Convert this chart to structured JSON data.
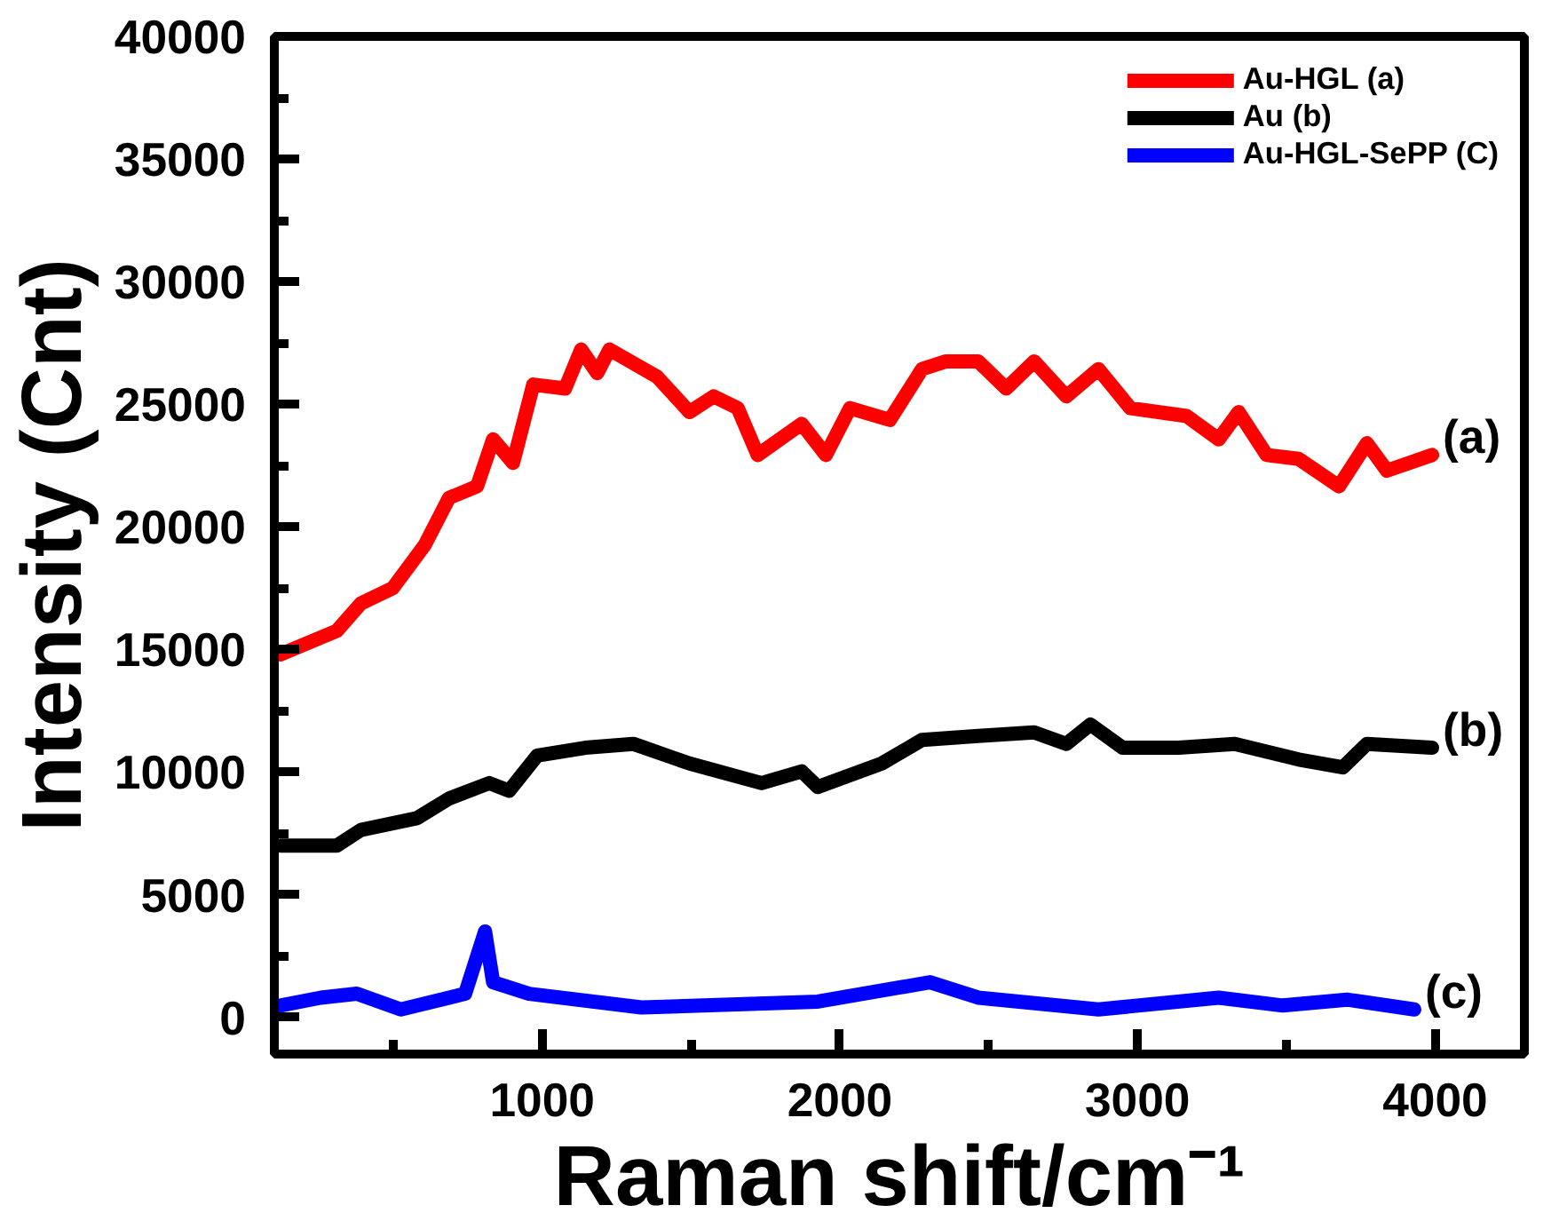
{
  "chart_data": {
    "type": "line",
    "xlabel": "Raman shift/cm⁻¹",
    "ylabel": "Intensity (Cnt)",
    "xlim": [
      100,
      4300
    ],
    "ylim": [
      -1500,
      40000
    ],
    "xticks": [
      1000,
      2000,
      3000,
      4000
    ],
    "yticks": [
      0,
      5000,
      10000,
      15000,
      20000,
      25000,
      30000,
      35000,
      40000
    ],
    "grid": false,
    "legend": "top right",
    "line_style": "solid",
    "marker": "none",
    "series": [
      {
        "name": "Au-HGL (a)",
        "color": "#ff0000",
        "x": [
          121,
          310,
          391,
          498,
          606,
          687,
          781,
          835,
          902,
          970,
          1077,
          1131,
          1185,
          1226,
          1387,
          1495,
          1576,
          1657,
          1724,
          1872,
          1953,
          2034,
          2168,
          2276,
          2357,
          2465,
          2559,
          2653,
          2761,
          2869,
          2976,
          3165,
          3273,
          3340,
          3434,
          3542,
          3677,
          3771,
          3838,
          3990
        ],
        "values": [
          14800,
          15760,
          16880,
          17500,
          19270,
          21180,
          21650,
          23570,
          22610,
          25800,
          25640,
          27230,
          26270,
          27230,
          26110,
          24680,
          25320,
          24840,
          22930,
          24200,
          22930,
          24840,
          24360,
          26430,
          26750,
          26750,
          25640,
          26750,
          25320,
          26430,
          24840,
          24520,
          23570,
          24680,
          22930,
          22770,
          21650,
          23410,
          22290,
          22930
        ]
      },
      {
        "name": "Au (b)",
        "color": "#000000",
        "x": [
          121,
          310,
          391,
          579,
          687,
          822,
          889,
          983,
          1145,
          1306,
          1495,
          1737,
          1872,
          1926,
          2141,
          2276,
          2465,
          2653,
          2761,
          2842,
          2950,
          3138,
          3327,
          3542,
          3690,
          3771,
          3990
        ],
        "values": [
          7000,
          7000,
          7640,
          8120,
          8920,
          9550,
          9240,
          10670,
          10990,
          11150,
          10350,
          9550,
          10030,
          9390,
          10350,
          11310,
          11470,
          11620,
          11150,
          11940,
          10990,
          10990,
          11150,
          10510,
          10190,
          11150,
          10990
        ]
      },
      {
        "name": "Au-HGL-SePP (C)",
        "color": "#0000ff",
        "x": [
          120,
          256,
          377,
          525,
          741,
          808,
          835,
          956,
          1333,
          1926,
          2303,
          2465,
          2869,
          3273,
          3488,
          3704,
          3930
        ],
        "values": [
          480,
          800,
          960,
          320,
          960,
          3500,
          1430,
          960,
          400,
          640,
          1430,
          800,
          320,
          800,
          480,
          720,
          320
        ]
      }
    ],
    "annotations": [
      "(a)",
      "(b)",
      "(c)"
    ]
  }
}
